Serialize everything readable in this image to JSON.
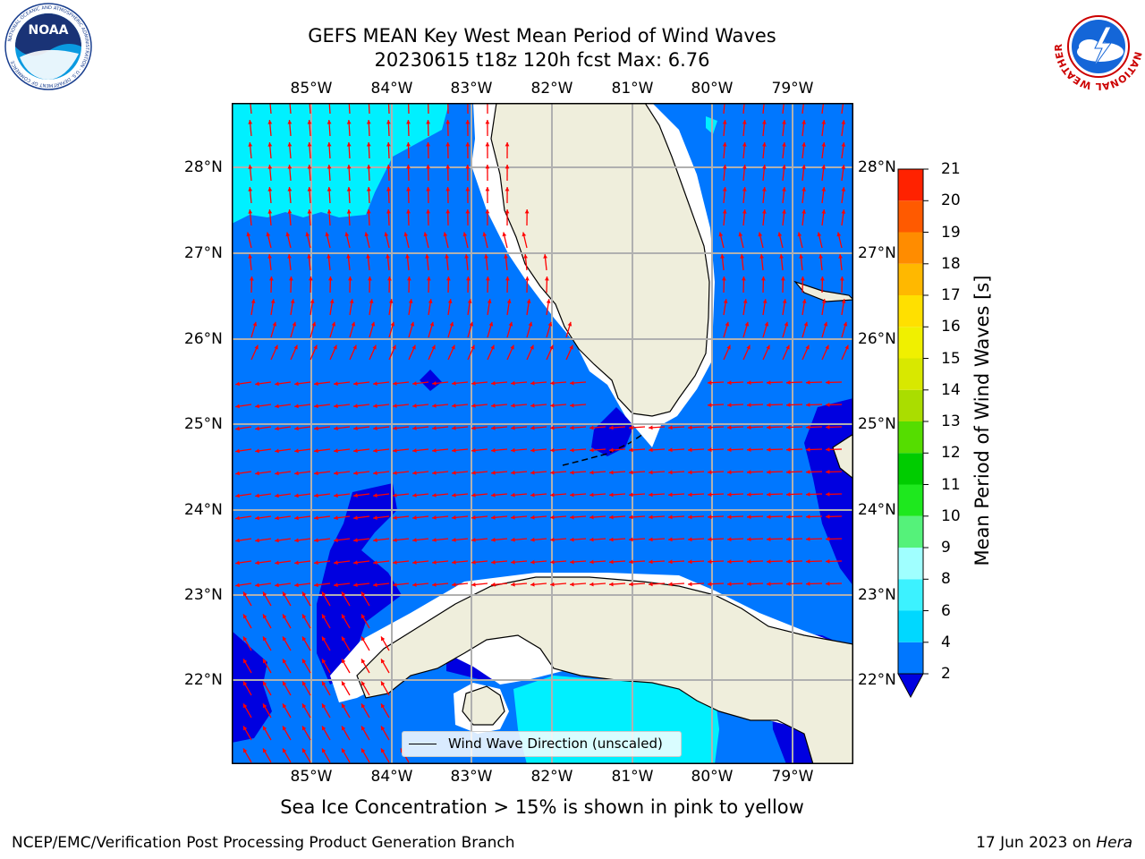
{
  "title_line1": "GEFS MEAN Key West Mean Period of Wind Waves",
  "title_line2": "20230615 t18z 120h fcst   Max: 6.76",
  "lon_labels": [
    "85°W",
    "84°W",
    "83°W",
    "82°W",
    "81°W",
    "80°W",
    "79°W"
  ],
  "lat_labels": [
    "28°N",
    "27°N",
    "26°N",
    "25°N",
    "24°N",
    "23°N",
    "22°N"
  ],
  "legend_label": "Wind Wave Direction (unscaled)",
  "colorbar": {
    "label": "Mean Period of Wind Waves [s]",
    "ticks": [
      "2",
      "4",
      "6",
      "8",
      "9",
      "10",
      "11",
      "12",
      "13",
      "14",
      "15",
      "16",
      "17",
      "18",
      "19",
      "20",
      "21"
    ],
    "colors": [
      "#0077ff",
      "#00d8ff",
      "#3cf2ff",
      "#a0ffff",
      "#55f27a",
      "#1ee81e",
      "#00cc00",
      "#55dd00",
      "#aadd00",
      "#d8e800",
      "#f0f000",
      "#ffe000",
      "#ffb800",
      "#ff8c00",
      "#ff5a00",
      "#ff2200"
    ],
    "under_color": "#0000e0"
  },
  "caption": "Sea Ice Concentration > 15% is shown in pink to yellow",
  "footer_left": "NCEP/EMC/Verification Post Processing Product Generation Branch",
  "footer_date": "17 Jun 2023 on ",
  "footer_machine": "Hera",
  "logos": {
    "noaa": "NOAA",
    "noaa_ring": "NATIONAL OCEANIC AND ATMOSPHERIC ADMINISTRATION · U.S. DEPARTMENT OF COMMERCE",
    "nws_ring": "NATIONAL WEATHER SERVICE"
  },
  "colors": {
    "land": "#efeedc",
    "ocean": "#0077ff",
    "arrow": "#ff0000",
    "grid": "#b0b0b0",
    "coast": "#000000"
  }
}
